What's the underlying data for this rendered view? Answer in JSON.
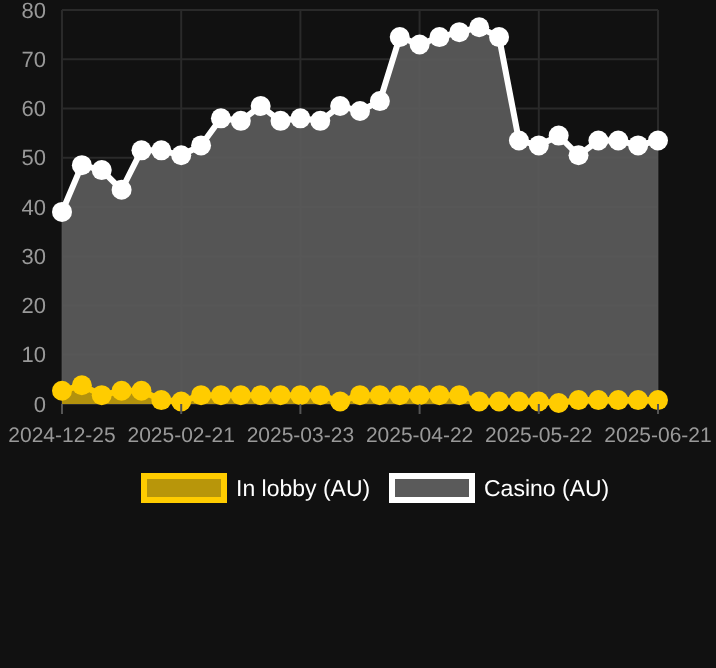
{
  "chart_data": {
    "type": "area",
    "categories": [
      "2024-12-25",
      null,
      null,
      null,
      null,
      null,
      "2025-02-21",
      null,
      null,
      null,
      null,
      null,
      "2025-03-23",
      null,
      null,
      null,
      null,
      null,
      "2025-04-22",
      null,
      null,
      null,
      null,
      null,
      "2025-05-22",
      null,
      null,
      null,
      null,
      null,
      "2025-06-21"
    ],
    "series": [
      {
        "name": "Casino (AU)",
        "color": "#ffffff",
        "values": [
          39,
          48.5,
          47.5,
          43.5,
          51.5,
          51.5,
          50.5,
          52.5,
          58,
          57.5,
          60.5,
          57.5,
          58,
          57.5,
          60.5,
          59.5,
          61.5,
          74.5,
          73,
          74.5,
          75.5,
          76.5,
          74.5,
          53.5,
          52.5,
          54.5,
          50.5,
          53.5,
          53.5,
          52.5,
          53.5
        ]
      },
      {
        "name": "In lobby (AU)",
        "color": "#ffcc00",
        "values": [
          2.7,
          3.8,
          1.8,
          2.7,
          2.7,
          0.8,
          0.5,
          1.8,
          1.8,
          1.8,
          1.8,
          1.8,
          1.8,
          1.8,
          0.5,
          1.8,
          1.8,
          1.8,
          1.8,
          1.8,
          1.8,
          0.5,
          0.5,
          0.5,
          0.5,
          0.2,
          0.8,
          0.8,
          0.8,
          0.8,
          0.8
        ]
      }
    ],
    "ylim": [
      0,
      80
    ],
    "yticks": [
      0,
      10,
      20,
      30,
      40,
      50,
      60,
      70,
      80
    ],
    "grid": true,
    "legend": "bottom",
    "marker": "circle"
  }
}
